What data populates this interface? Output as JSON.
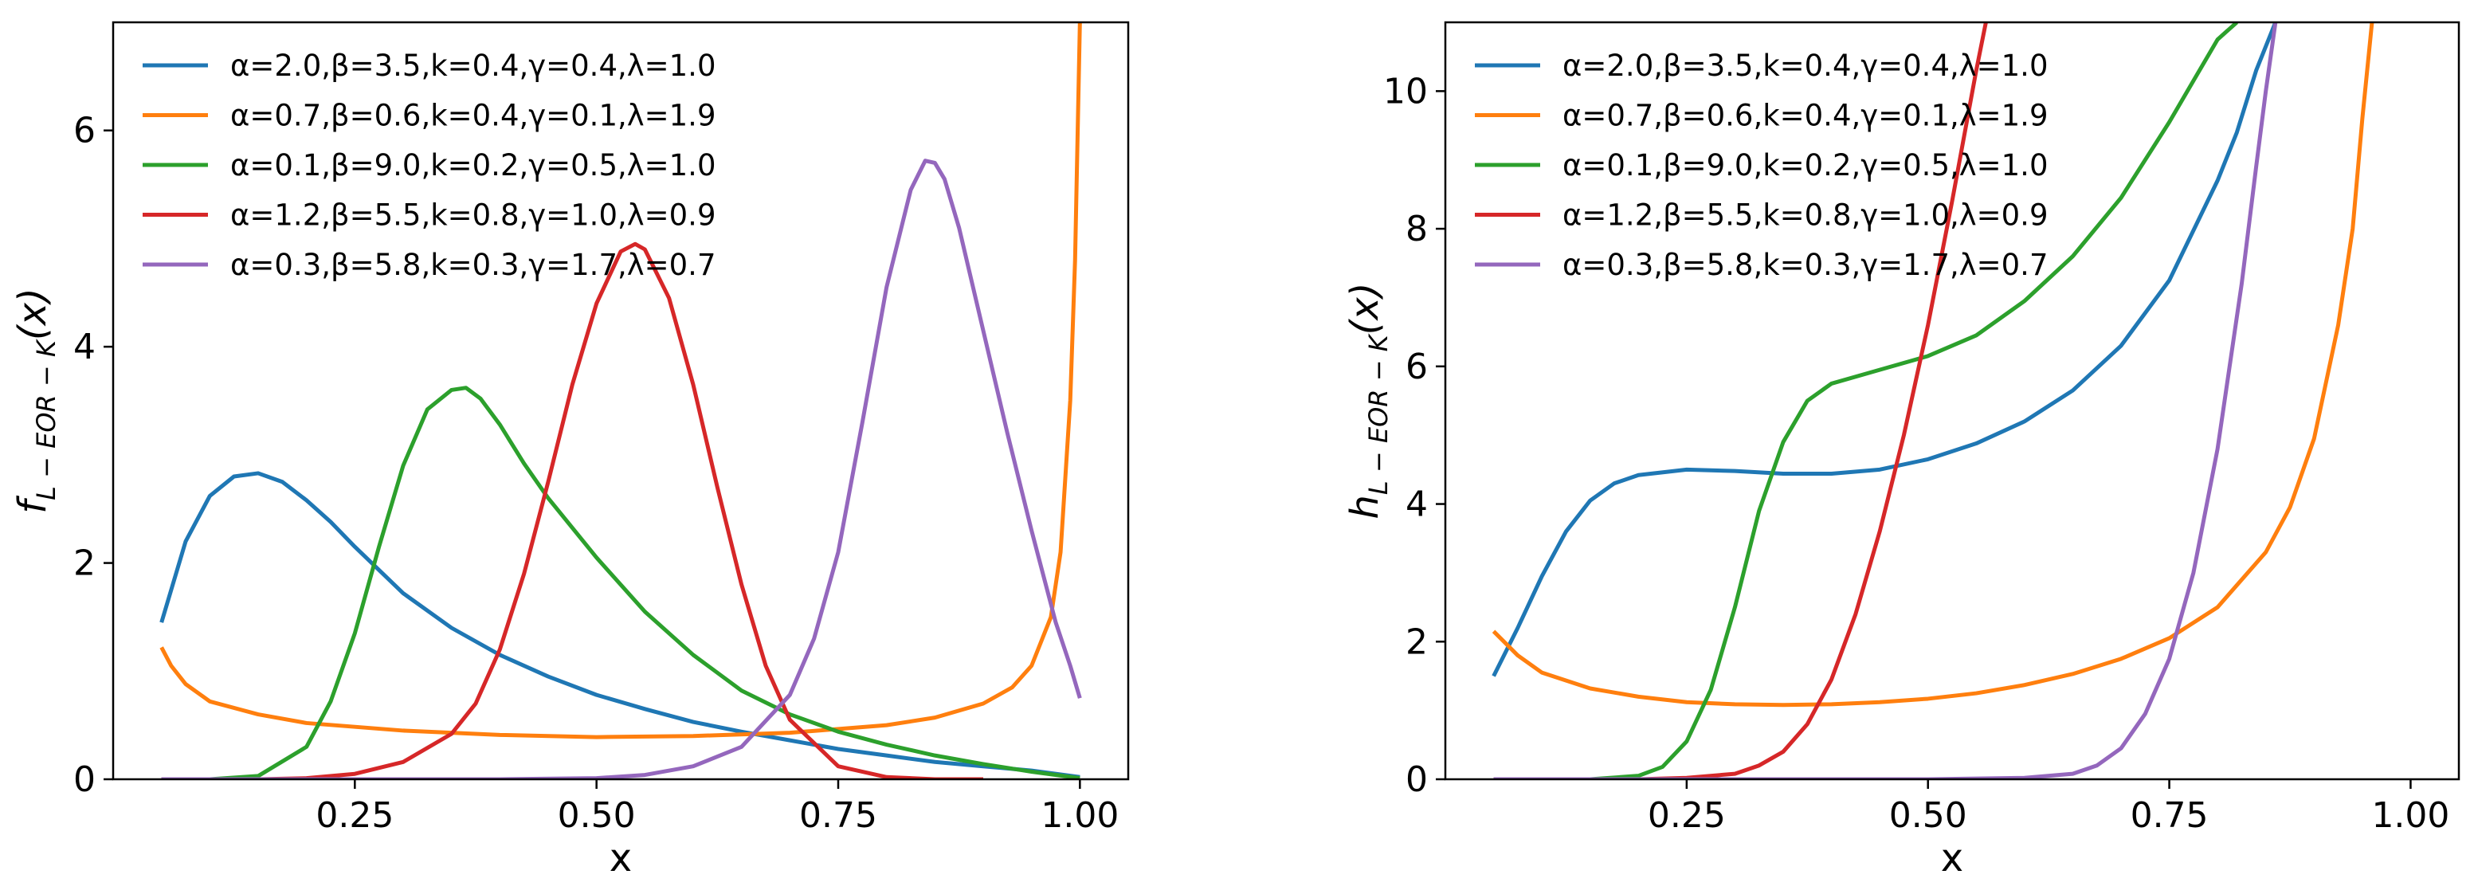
{
  "chart_data": [
    {
      "type": "line",
      "panel": "left",
      "title": "",
      "xlabel": "x",
      "ylabel": "f_{L-EOR-K}(x)",
      "ylabel_base": "f",
      "ylabel_sub": "L − EOR − K",
      "ylabel_arg": "(x)",
      "xlim": [
        0.0,
        1.05
      ],
      "ylim": [
        0,
        7
      ],
      "xticks": [
        0.25,
        0.5,
        0.75,
        1.0
      ],
      "xtick_labels": [
        "0.25",
        "0.50",
        "0.75",
        "1.00"
      ],
      "yticks": [
        0,
        2,
        4,
        6
      ],
      "ytick_labels": [
        "0",
        "2",
        "4",
        "6"
      ],
      "legend_position": "upper-left",
      "series": [
        {
          "name": "α=2.0,β=3.5,k=0.4,γ=0.4,λ=1.0",
          "color": "#1f77b4",
          "x": [
            0.05,
            0.075,
            0.1,
            0.125,
            0.15,
            0.175,
            0.2,
            0.225,
            0.25,
            0.3,
            0.35,
            0.4,
            0.45,
            0.5,
            0.55,
            0.6,
            0.65,
            0.7,
            0.75,
            0.8,
            0.85,
            0.9,
            0.95,
            1.0
          ],
          "y": [
            1.45,
            2.2,
            2.62,
            2.8,
            2.83,
            2.75,
            2.58,
            2.38,
            2.15,
            1.72,
            1.4,
            1.15,
            0.95,
            0.78,
            0.65,
            0.53,
            0.44,
            0.36,
            0.28,
            0.22,
            0.16,
            0.12,
            0.08,
            0.02
          ]
        },
        {
          "name": "α=0.7,β=0.6,k=0.4,γ=0.1,λ=1.9",
          "color": "#ff7f0e",
          "x": [
            0.05,
            0.06,
            0.075,
            0.1,
            0.15,
            0.2,
            0.3,
            0.4,
            0.5,
            0.6,
            0.7,
            0.8,
            0.85,
            0.9,
            0.93,
            0.95,
            0.97,
            0.98,
            0.99,
            0.995,
            1.0
          ],
          "y": [
            1.22,
            1.05,
            0.88,
            0.72,
            0.6,
            0.52,
            0.45,
            0.41,
            0.39,
            0.4,
            0.43,
            0.5,
            0.57,
            0.7,
            0.85,
            1.05,
            1.5,
            2.1,
            3.5,
            4.8,
            7.0
          ]
        },
        {
          "name": "α=0.1,β=9.0,k=0.2,γ=0.5,λ=1.0",
          "color": "#2ca02c",
          "x": [
            0.05,
            0.1,
            0.15,
            0.2,
            0.225,
            0.25,
            0.275,
            0.3,
            0.325,
            0.35,
            0.365,
            0.38,
            0.4,
            0.425,
            0.45,
            0.5,
            0.55,
            0.6,
            0.65,
            0.7,
            0.75,
            0.8,
            0.85,
            0.9,
            0.95,
            1.0
          ],
          "y": [
            0.0,
            0.0,
            0.03,
            0.3,
            0.72,
            1.35,
            2.15,
            2.9,
            3.42,
            3.6,
            3.62,
            3.52,
            3.28,
            2.92,
            2.6,
            2.05,
            1.55,
            1.15,
            0.82,
            0.6,
            0.44,
            0.32,
            0.22,
            0.14,
            0.07,
            0.01
          ]
        },
        {
          "name": "α=1.2,β=5.5,k=0.8,γ=1.0,λ=0.9",
          "color": "#d62728",
          "x": [
            0.05,
            0.15,
            0.2,
            0.25,
            0.3,
            0.35,
            0.375,
            0.4,
            0.425,
            0.45,
            0.475,
            0.5,
            0.525,
            0.54,
            0.55,
            0.575,
            0.6,
            0.625,
            0.65,
            0.675,
            0.7,
            0.75,
            0.8,
            0.85,
            0.9
          ],
          "y": [
            0.0,
            0.0,
            0.01,
            0.05,
            0.16,
            0.42,
            0.7,
            1.2,
            1.9,
            2.75,
            3.65,
            4.4,
            4.88,
            4.95,
            4.9,
            4.45,
            3.65,
            2.7,
            1.8,
            1.05,
            0.55,
            0.12,
            0.02,
            0.0,
            0.0
          ]
        },
        {
          "name": "α=0.3,β=5.8,k=0.3,γ=1.7,λ=0.7",
          "color": "#9467bd",
          "x": [
            0.05,
            0.4,
            0.5,
            0.55,
            0.6,
            0.65,
            0.7,
            0.725,
            0.75,
            0.775,
            0.8,
            0.825,
            0.84,
            0.85,
            0.86,
            0.875,
            0.9,
            0.925,
            0.95,
            0.975,
            0.99,
            1.0
          ],
          "y": [
            0.0,
            0.0,
            0.01,
            0.04,
            0.12,
            0.3,
            0.78,
            1.3,
            2.1,
            3.3,
            4.55,
            5.45,
            5.72,
            5.7,
            5.55,
            5.1,
            4.15,
            3.2,
            2.3,
            1.45,
            1.05,
            0.75
          ]
        }
      ]
    },
    {
      "type": "line",
      "panel": "right",
      "title": "",
      "xlabel": "x",
      "ylabel": "h_{L-EOR-K}(x)",
      "ylabel_base": "h",
      "ylabel_sub": "L − EOR − K",
      "ylabel_arg": "(x)",
      "xlim": [
        0.0,
        1.05
      ],
      "ylim": [
        0,
        11
      ],
      "xticks": [
        0.25,
        0.5,
        0.75,
        1.0
      ],
      "xtick_labels": [
        "0.25",
        "0.50",
        "0.75",
        "1.00"
      ],
      "yticks": [
        0,
        2,
        4,
        6,
        8,
        10
      ],
      "ytick_labels": [
        "0",
        "2",
        "4",
        "6",
        "8",
        "10"
      ],
      "legend_position": "upper-left",
      "series": [
        {
          "name": "α=2.0,β=3.5,k=0.4,γ=0.4,λ=1.0",
          "color": "#1f77b4",
          "x": [
            0.05,
            0.075,
            0.1,
            0.125,
            0.15,
            0.175,
            0.2,
            0.25,
            0.3,
            0.35,
            0.4,
            0.45,
            0.5,
            0.55,
            0.6,
            0.65,
            0.7,
            0.75,
            0.8,
            0.82,
            0.84,
            0.86
          ],
          "y": [
            1.5,
            2.2,
            2.95,
            3.6,
            4.05,
            4.3,
            4.42,
            4.5,
            4.48,
            4.44,
            4.44,
            4.5,
            4.65,
            4.88,
            5.2,
            5.65,
            6.3,
            7.25,
            8.7,
            9.4,
            10.3,
            11.0
          ]
        },
        {
          "name": "α=0.7,β=0.6,k=0.4,γ=0.1,λ=1.9",
          "color": "#ff7f0e",
          "x": [
            0.05,
            0.075,
            0.1,
            0.15,
            0.2,
            0.25,
            0.3,
            0.35,
            0.4,
            0.45,
            0.5,
            0.55,
            0.6,
            0.65,
            0.7,
            0.75,
            0.8,
            0.85,
            0.875,
            0.9,
            0.925,
            0.94,
            0.95,
            0.96
          ],
          "y": [
            2.15,
            1.8,
            1.55,
            1.32,
            1.2,
            1.12,
            1.09,
            1.08,
            1.09,
            1.12,
            1.17,
            1.25,
            1.37,
            1.53,
            1.75,
            2.05,
            2.5,
            3.3,
            3.95,
            4.95,
            6.6,
            8.0,
            9.6,
            11.0
          ]
        },
        {
          "name": "α=0.1,β=9.0,k=0.2,γ=0.5,λ=1.0",
          "color": "#2ca02c",
          "x": [
            0.05,
            0.15,
            0.2,
            0.225,
            0.25,
            0.275,
            0.3,
            0.325,
            0.35,
            0.375,
            0.4,
            0.45,
            0.5,
            0.55,
            0.6,
            0.65,
            0.7,
            0.75,
            0.775,
            0.8,
            0.82
          ],
          "y": [
            0.0,
            0.0,
            0.05,
            0.18,
            0.55,
            1.3,
            2.5,
            3.9,
            4.9,
            5.5,
            5.75,
            5.95,
            6.15,
            6.45,
            6.95,
            7.6,
            8.45,
            9.55,
            10.15,
            10.75,
            11.0
          ]
        },
        {
          "name": "α=1.2,β=5.5,k=0.8,γ=1.0,λ=0.9",
          "color": "#d62728",
          "x": [
            0.05,
            0.2,
            0.25,
            0.3,
            0.325,
            0.35,
            0.375,
            0.4,
            0.425,
            0.45,
            0.475,
            0.5,
            0.525,
            0.55,
            0.56
          ],
          "y": [
            0.0,
            0.0,
            0.02,
            0.08,
            0.2,
            0.4,
            0.8,
            1.45,
            2.4,
            3.6,
            5.0,
            6.6,
            8.4,
            10.3,
            11.0
          ]
        },
        {
          "name": "α=0.3,β=5.8,k=0.3,γ=1.7,λ=0.7",
          "color": "#9467bd",
          "x": [
            0.05,
            0.5,
            0.6,
            0.65,
            0.675,
            0.7,
            0.725,
            0.75,
            0.775,
            0.8,
            0.825,
            0.84,
            0.85,
            0.86
          ],
          "y": [
            0.0,
            0.0,
            0.02,
            0.08,
            0.2,
            0.45,
            0.95,
            1.75,
            3.0,
            4.8,
            7.2,
            8.9,
            10.0,
            11.0
          ]
        }
      ]
    }
  ]
}
